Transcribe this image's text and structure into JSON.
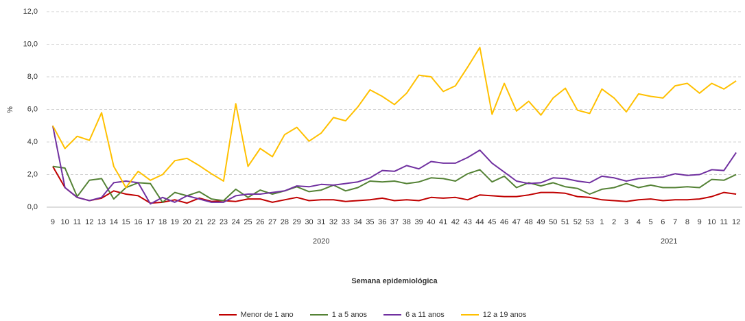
{
  "chart_data": {
    "type": "line",
    "x_label": "Semana epidemiológica",
    "y_label": "%",
    "categories": [
      "9",
      "10",
      "11",
      "12",
      "13",
      "14",
      "15",
      "16",
      "17",
      "18",
      "19",
      "20",
      "21",
      "22",
      "23",
      "24",
      "25",
      "26",
      "27",
      "28",
      "29",
      "30",
      "31",
      "32",
      "33",
      "34",
      "35",
      "36",
      "37",
      "38",
      "39",
      "40",
      "41",
      "42",
      "43",
      "44",
      "45",
      "46",
      "47",
      "48",
      "49",
      "50",
      "51",
      "52",
      "53",
      "1",
      "2",
      "3",
      "4",
      "5",
      "6",
      "7",
      "8",
      "9",
      "10",
      "11",
      "12"
    ],
    "year_labels": [
      "2020",
      "2021"
    ],
    "ylim": [
      0,
      12
    ],
    "yticks": [
      {
        "value": 0,
        "label": "0,0"
      },
      {
        "value": 2,
        "label": "2,0"
      },
      {
        "value": 4,
        "label": "4,0"
      },
      {
        "value": 6,
        "label": "6,0"
      },
      {
        "value": 8,
        "label": "8,0"
      },
      {
        "value": 10,
        "label": "10,0"
      },
      {
        "value": 12,
        "label": "12,0"
      }
    ],
    "grid": true,
    "legend": "bottom",
    "series": [
      {
        "name": "Menor de 1 ano",
        "color": "#c00000",
        "values": [
          2.5,
          1.2,
          0.6,
          0.4,
          0.55,
          1.0,
          0.8,
          0.7,
          0.25,
          0.3,
          0.45,
          0.25,
          0.55,
          0.35,
          0.4,
          0.35,
          0.5,
          0.5,
          0.3,
          0.45,
          0.6,
          0.4,
          0.45,
          0.45,
          0.35,
          0.4,
          0.45,
          0.55,
          0.4,
          0.45,
          0.4,
          0.6,
          0.55,
          0.6,
          0.45,
          0.75,
          0.7,
          0.65,
          0.65,
          0.75,
          0.9,
          0.9,
          0.85,
          0.65,
          0.6,
          0.45,
          0.4,
          0.35,
          0.45,
          0.5,
          0.4,
          0.45,
          0.45,
          0.5,
          0.65,
          0.9,
          0.8
        ]
      },
      {
        "name": "1 a 5 anos",
        "color": "#548235",
        "values": [
          2.5,
          2.4,
          0.65,
          1.65,
          1.75,
          0.5,
          1.2,
          1.5,
          1.45,
          0.3,
          0.9,
          0.7,
          0.95,
          0.5,
          0.4,
          1.1,
          0.6,
          1.05,
          0.8,
          1.0,
          1.25,
          0.95,
          1.05,
          1.35,
          1.0,
          1.2,
          1.6,
          1.55,
          1.6,
          1.45,
          1.55,
          1.8,
          1.75,
          1.6,
          2.05,
          2.3,
          1.55,
          1.9,
          1.2,
          1.5,
          1.3,
          1.5,
          1.25,
          1.15,
          0.8,
          1.1,
          1.2,
          1.45,
          1.2,
          1.35,
          1.2,
          1.2,
          1.25,
          1.2,
          1.7,
          1.65,
          2.0
        ]
      },
      {
        "name": "6 a 11 anos",
        "color": "#7030a0",
        "values": [
          5.0,
          1.2,
          0.6,
          0.4,
          0.6,
          1.5,
          1.6,
          1.5,
          0.2,
          0.6,
          0.3,
          0.7,
          0.5,
          0.3,
          0.3,
          0.7,
          0.8,
          0.8,
          0.9,
          1.0,
          1.3,
          1.25,
          1.4,
          1.35,
          1.45,
          1.55,
          1.8,
          2.25,
          2.2,
          2.55,
          2.35,
          2.8,
          2.7,
          2.7,
          3.05,
          3.5,
          2.7,
          2.15,
          1.6,
          1.45,
          1.5,
          1.8,
          1.75,
          1.6,
          1.5,
          1.9,
          1.8,
          1.6,
          1.75,
          1.8,
          1.85,
          2.05,
          1.95,
          2.0,
          2.3,
          2.25,
          3.35
        ]
      },
      {
        "name": "12 a 19 anos",
        "color": "#ffc000",
        "values": [
          5.0,
          3.6,
          4.35,
          4.1,
          5.8,
          2.5,
          1.2,
          2.2,
          1.65,
          2.0,
          2.85,
          3.0,
          2.55,
          2.05,
          1.6,
          6.35,
          2.5,
          3.6,
          3.1,
          4.45,
          4.9,
          4.05,
          4.55,
          5.5,
          5.3,
          6.15,
          7.2,
          6.8,
          6.3,
          7.0,
          8.1,
          8.0,
          7.1,
          7.45,
          8.6,
          9.8,
          5.7,
          7.6,
          5.9,
          6.5,
          5.65,
          6.7,
          7.3,
          5.95,
          5.75,
          7.25,
          6.7,
          5.85,
          6.95,
          6.8,
          6.7,
          7.45,
          7.6,
          7.0,
          7.6,
          7.25,
          7.75
        ]
      }
    ]
  }
}
